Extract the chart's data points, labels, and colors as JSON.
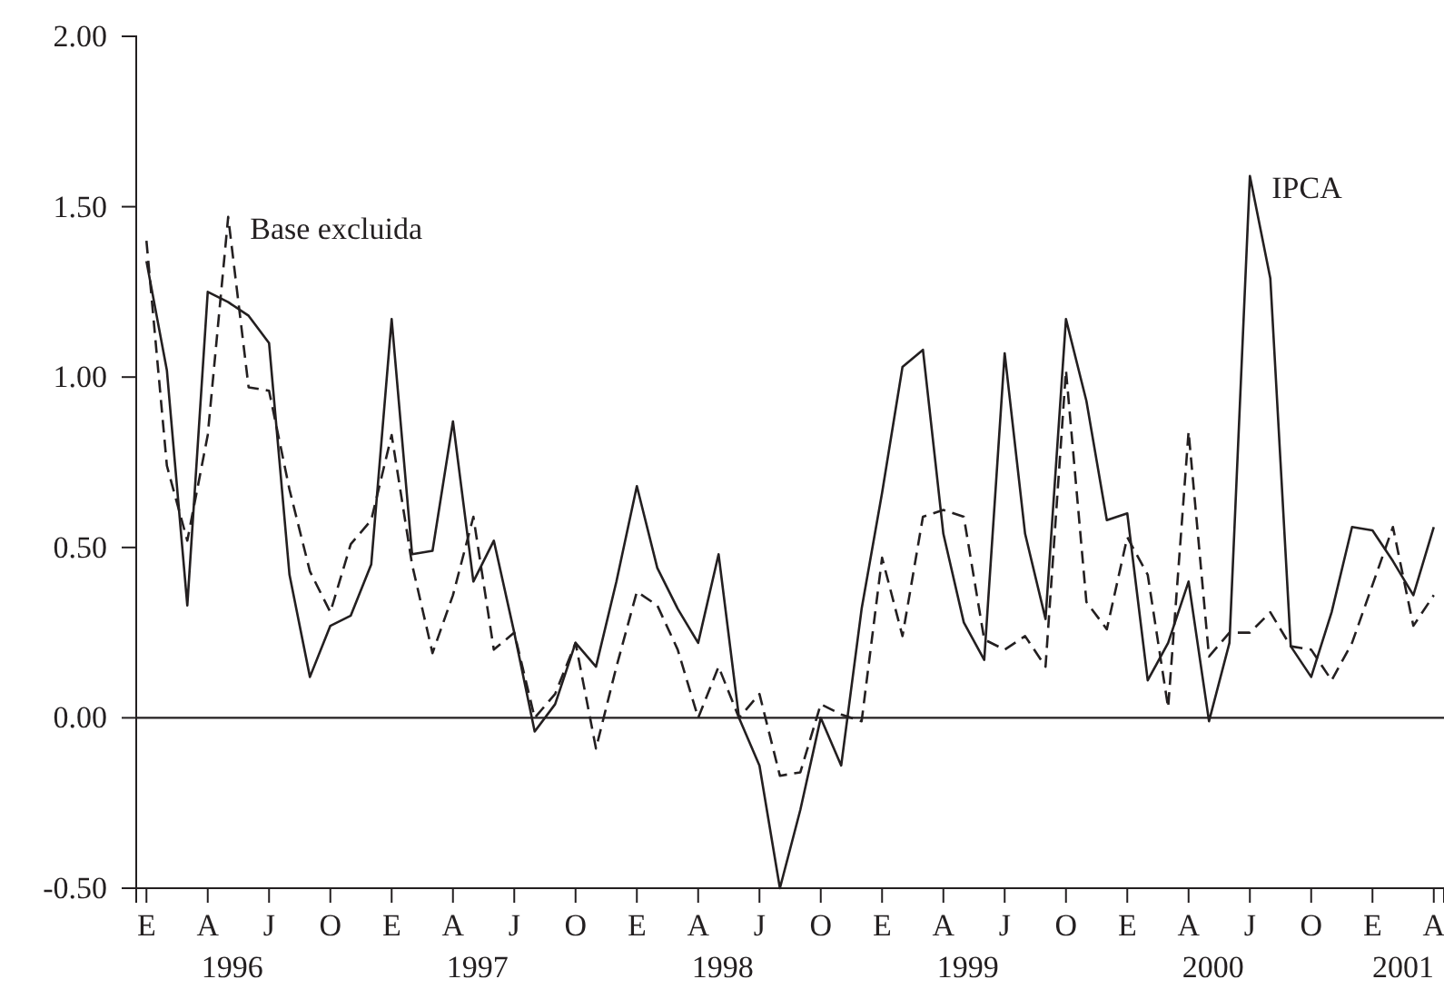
{
  "chart_data": {
    "type": "line",
    "categories": [
      "E",
      null,
      null,
      "A",
      null,
      null,
      "J",
      null,
      null,
      "O",
      null,
      null,
      "E",
      null,
      null,
      "A",
      null,
      null,
      "J",
      null,
      null,
      "O",
      null,
      null,
      "E",
      null,
      null,
      "A",
      null,
      null,
      "J",
      null,
      null,
      "O",
      null,
      null,
      "E",
      null,
      null,
      "A",
      null,
      null,
      "J",
      null,
      null,
      "O",
      null,
      null,
      "E",
      null,
      null,
      "A",
      null,
      null,
      "J",
      null,
      null,
      "O",
      null,
      null,
      "E",
      null,
      null,
      "A"
    ],
    "series": [
      {
        "name": "IPCA",
        "color": "#231f20",
        "line_style": "solid",
        "values": [
          1.34,
          1.02,
          0.33,
          1.25,
          1.22,
          1.18,
          1.1,
          0.42,
          0.12,
          0.27,
          0.3,
          0.45,
          1.17,
          0.48,
          0.49,
          0.87,
          0.4,
          0.52,
          0.25,
          -0.04,
          0.04,
          0.22,
          0.15,
          0.4,
          0.68,
          0.44,
          0.32,
          0.22,
          0.48,
          0.0,
          -0.14,
          -0.5,
          -0.27,
          0.0,
          -0.14,
          0.32,
          0.66,
          1.03,
          1.08,
          0.54,
          0.28,
          0.17,
          1.07,
          0.54,
          0.29,
          1.17,
          0.93,
          0.58,
          0.6,
          0.11,
          0.22,
          0.4,
          -0.01,
          0.22,
          1.59,
          1.29,
          0.21,
          0.12,
          0.31,
          0.56,
          0.55,
          0.46,
          0.36,
          0.56
        ]
      },
      {
        "name": "Base excluida",
        "color": "#231f20",
        "line_style": "dashed",
        "values": [
          1.4,
          0.74,
          0.52,
          0.83,
          1.47,
          0.97,
          0.96,
          0.67,
          0.43,
          0.31,
          0.51,
          0.58,
          0.83,
          0.45,
          0.19,
          0.36,
          0.59,
          0.2,
          0.25,
          0.0,
          0.07,
          0.22,
          -0.09,
          0.15,
          0.37,
          0.33,
          0.2,
          0.0,
          0.15,
          0.0,
          0.07,
          -0.17,
          -0.16,
          0.04,
          0.01,
          -0.01,
          0.47,
          0.24,
          0.59,
          0.61,
          0.59,
          0.23,
          0.2,
          0.24,
          0.15,
          1.02,
          0.34,
          0.26,
          0.53,
          0.42,
          0.03,
          0.84,
          0.18,
          0.25,
          0.25,
          0.31,
          0.21,
          0.2,
          0.11,
          0.22,
          0.39,
          0.56,
          0.27,
          0.36
        ]
      }
    ],
    "ylim": [
      -0.5,
      2.0
    ],
    "yticks": [
      {
        "value": -0.5,
        "label": "-0.50"
      },
      {
        "value": 0,
        "label": "0.00"
      },
      {
        "value": 0.5,
        "label": "0.50"
      },
      {
        "value": 1.0,
        "label": "1.00"
      },
      {
        "value": 1.5,
        "label": "1.50"
      },
      {
        "value": 2.0,
        "label": "2.00"
      }
    ],
    "ref_lines": [
      {
        "axis": "y",
        "value": 0,
        "color": "#231f20"
      }
    ],
    "annotations": [
      "1996",
      "1997",
      "1998",
      "1999",
      "2000",
      "2001"
    ],
    "grid": false
  }
}
